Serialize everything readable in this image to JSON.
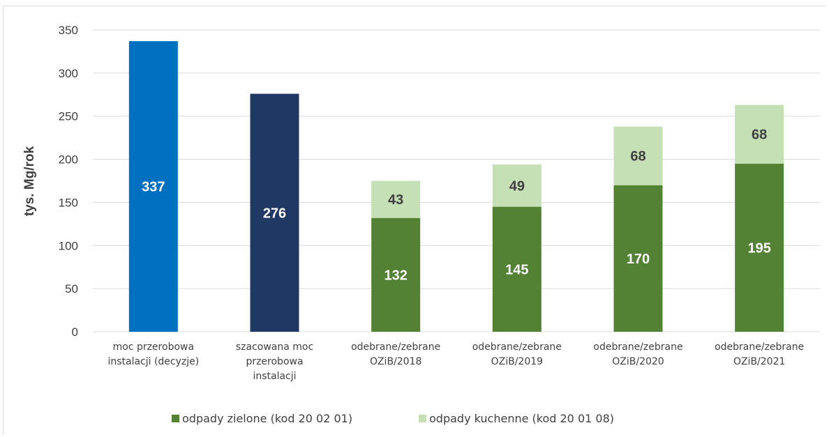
{
  "chart_data": {
    "type": "bar",
    "ylabel": "tys. Mg/rok",
    "xlabel": "",
    "ylim": [
      0,
      350
    ],
    "yticks": [
      0,
      50,
      100,
      150,
      200,
      250,
      300,
      350
    ],
    "grid": true,
    "legend_position": "bottom",
    "categories": [
      [
        "moc przerobowa",
        "instalacji (decyzje)"
      ],
      [
        "szacowana moc",
        "przerobowa",
        "instalacji"
      ],
      [
        "odebrane/zebrane",
        "OZiB/2018"
      ],
      [
        "odebrane/zebrane",
        "OZiB/2019"
      ],
      [
        "odebrane/zebrane",
        "OZiB/2020"
      ],
      [
        "odebrane/zebrane",
        "OZiB/2021"
      ]
    ],
    "capacity_bars": [
      {
        "value": 337,
        "color": "#0070c0",
        "label_color": "#ffffff"
      },
      {
        "value": 276,
        "color": "#1f3864",
        "label_color": "#ffffff"
      }
    ],
    "series": [
      {
        "name": "odpady zielone (kod 20 02 01)",
        "color": "#548235",
        "label_color": "#ffffff",
        "values": [
          null,
          null,
          132,
          145,
          170,
          195
        ]
      },
      {
        "name": "odpady kuchenne (kod 20 01 08)",
        "color": "#c5e0b4",
        "label_color": "#404040",
        "values": [
          null,
          null,
          43,
          49,
          68,
          68
        ]
      }
    ]
  }
}
